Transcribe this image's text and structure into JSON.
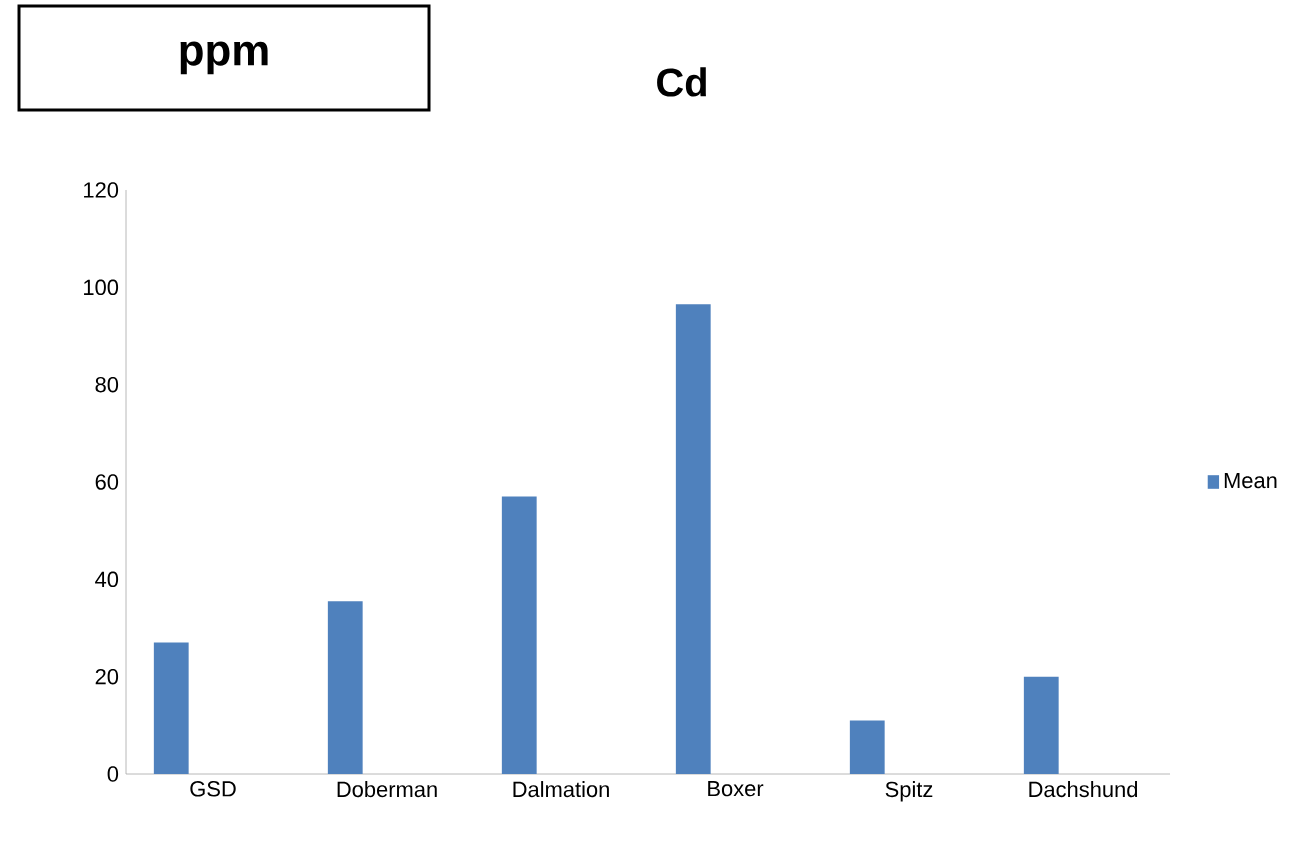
{
  "chart_data": {
    "type": "bar",
    "title": "Cd",
    "annotations": [
      "ppm"
    ],
    "categories": [
      "GSD",
      "Doberman",
      "Dalmation",
      "Boxer",
      "Spitz",
      "Dachshund"
    ],
    "series": [
      {
        "name": "Mean",
        "color": "#4f81bd",
        "values": [
          27,
          35.5,
          57,
          96.5,
          11,
          20
        ]
      }
    ],
    "ylim": [
      0,
      120
    ],
    "yticks": [
      0,
      20,
      40,
      60,
      80,
      100,
      120
    ],
    "grid": false,
    "legend": "right"
  }
}
